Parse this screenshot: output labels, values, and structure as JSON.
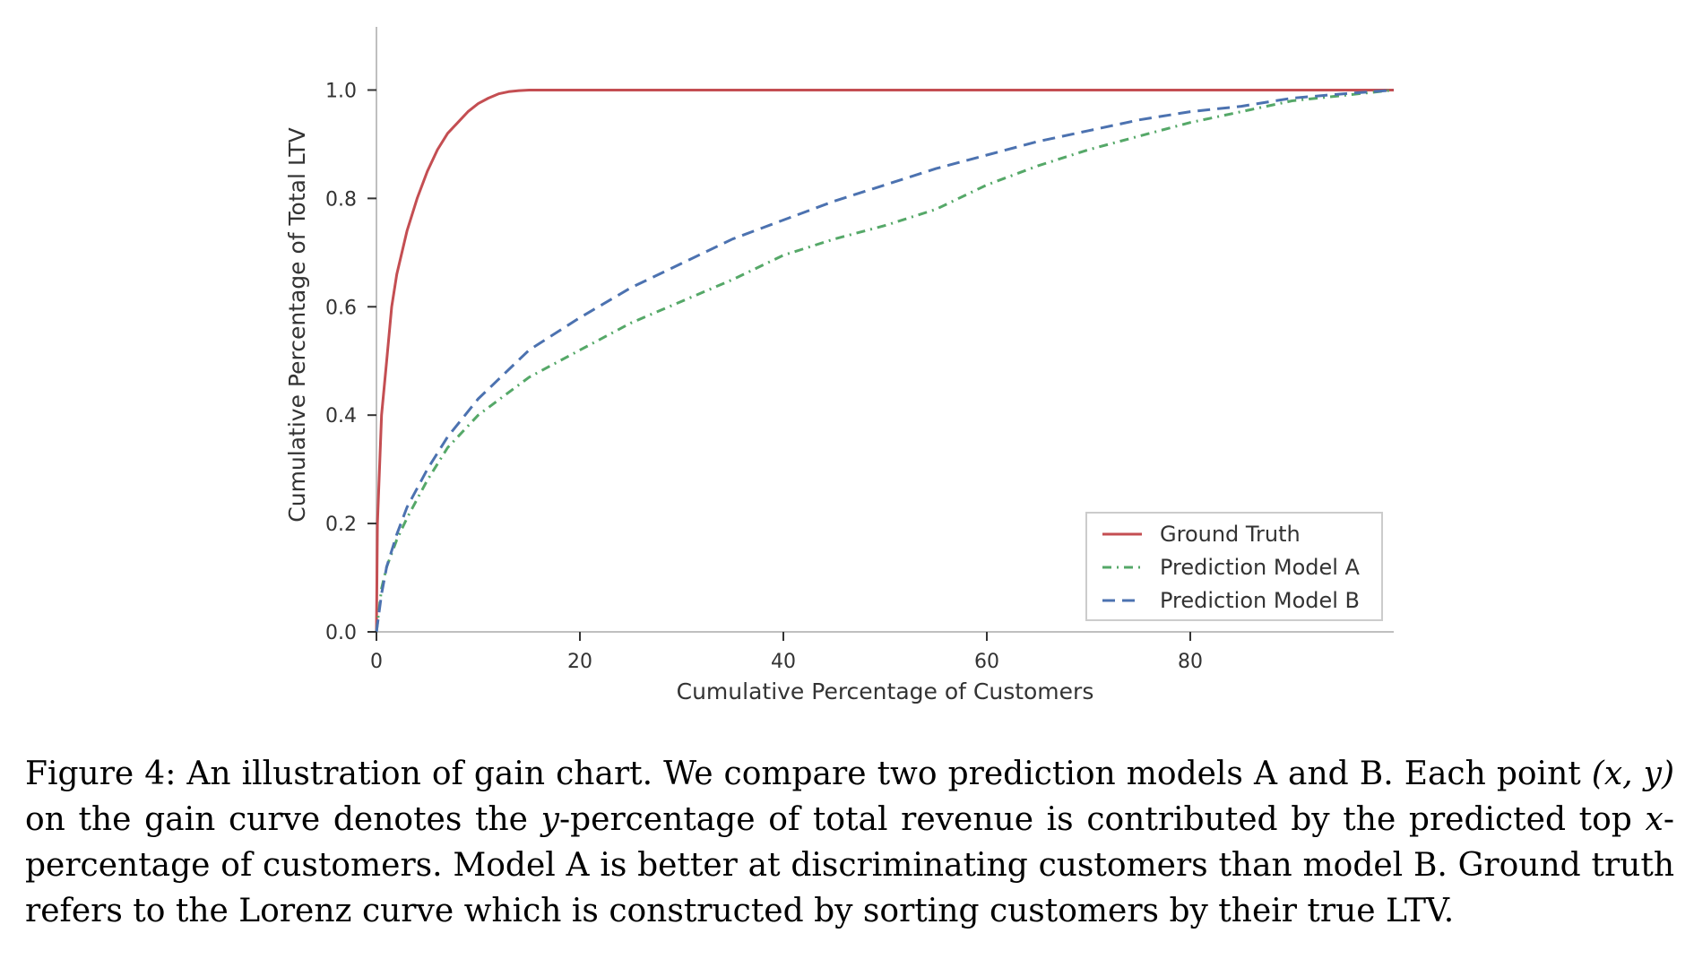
{
  "chart_data": {
    "type": "line",
    "xlabel": "Cumulative Percentage of Customers",
    "ylabel": "Cumulative Percentage of Total LTV",
    "xlim": [
      0,
      100
    ],
    "ylim": [
      0,
      1.1
    ],
    "xticks": [
      0,
      20,
      40,
      60,
      80
    ],
    "xtick_labels": [
      "0",
      "20",
      "40",
      "60",
      "80"
    ],
    "yticks": [
      0.0,
      0.2,
      0.4,
      0.6,
      0.8,
      1.0
    ],
    "ytick_labels": [
      "0.0",
      "0.2",
      "0.4",
      "0.6",
      "0.8",
      "1.0"
    ],
    "grid": false,
    "legend_position": "lower-right",
    "series": [
      {
        "name": "Ground Truth",
        "color": "#c44e52",
        "style": "solid",
        "points": [
          [
            0,
            0
          ],
          [
            0.1,
            0.2
          ],
          [
            0.5,
            0.4
          ],
          [
            1,
            0.5
          ],
          [
            1.5,
            0.6
          ],
          [
            2,
            0.66
          ],
          [
            3,
            0.74
          ],
          [
            4,
            0.8
          ],
          [
            5,
            0.85
          ],
          [
            6,
            0.89
          ],
          [
            7,
            0.92
          ],
          [
            8,
            0.94
          ],
          [
            9,
            0.96
          ],
          [
            10,
            0.975
          ],
          [
            11,
            0.985
          ],
          [
            12,
            0.993
          ],
          [
            13,
            0.997
          ],
          [
            14,
            0.999
          ],
          [
            15,
            1.0
          ],
          [
            16,
            1.0
          ],
          [
            100,
            1.0
          ]
        ]
      },
      {
        "name": "Prediction Model A",
        "color": "#55a868",
        "style": "dashdot",
        "points": [
          [
            0,
            0
          ],
          [
            0.5,
            0.08
          ],
          [
            1,
            0.12
          ],
          [
            2,
            0.17
          ],
          [
            3,
            0.21
          ],
          [
            5,
            0.28
          ],
          [
            7,
            0.34
          ],
          [
            10,
            0.4
          ],
          [
            15,
            0.47
          ],
          [
            20,
            0.52
          ],
          [
            25,
            0.57
          ],
          [
            30,
            0.61
          ],
          [
            35,
            0.65
          ],
          [
            40,
            0.695
          ],
          [
            45,
            0.725
          ],
          [
            50,
            0.75
          ],
          [
            55,
            0.78
          ],
          [
            60,
            0.825
          ],
          [
            65,
            0.86
          ],
          [
            70,
            0.89
          ],
          [
            75,
            0.915
          ],
          [
            80,
            0.94
          ],
          [
            85,
            0.96
          ],
          [
            90,
            0.98
          ],
          [
            95,
            0.99
          ],
          [
            100,
            1.0
          ]
        ]
      },
      {
        "name": "Prediction Model B",
        "color": "#4c72b0",
        "style": "dashed",
        "points": [
          [
            0,
            0
          ],
          [
            0.5,
            0.07
          ],
          [
            1,
            0.12
          ],
          [
            2,
            0.18
          ],
          [
            3,
            0.23
          ],
          [
            5,
            0.3
          ],
          [
            7,
            0.36
          ],
          [
            10,
            0.43
          ],
          [
            15,
            0.52
          ],
          [
            20,
            0.58
          ],
          [
            25,
            0.635
          ],
          [
            30,
            0.68
          ],
          [
            35,
            0.725
          ],
          [
            40,
            0.76
          ],
          [
            45,
            0.795
          ],
          [
            50,
            0.825
          ],
          [
            55,
            0.855
          ],
          [
            60,
            0.88
          ],
          [
            65,
            0.905
          ],
          [
            70,
            0.925
          ],
          [
            75,
            0.945
          ],
          [
            80,
            0.96
          ],
          [
            85,
            0.97
          ],
          [
            90,
            0.985
          ],
          [
            95,
            0.993
          ],
          [
            100,
            1.0
          ]
        ]
      }
    ]
  },
  "caption": {
    "figure_label": "Figure 4:",
    "part1": " An illustration of gain chart.  We compare two prediction models A and B. Each point ",
    "xy_math": "(x, y)",
    "part2": " on the gain curve denotes the ",
    "y_math": "y",
    "part3": "-percentage of total revenue is contributed by the predicted top ",
    "x_math": "x",
    "part4": "-percentage of customers. Model A is better at discriminating customers than model B. Ground truth refers to the Lorenz curve which is constructed by sorting customers by their true LTV."
  }
}
